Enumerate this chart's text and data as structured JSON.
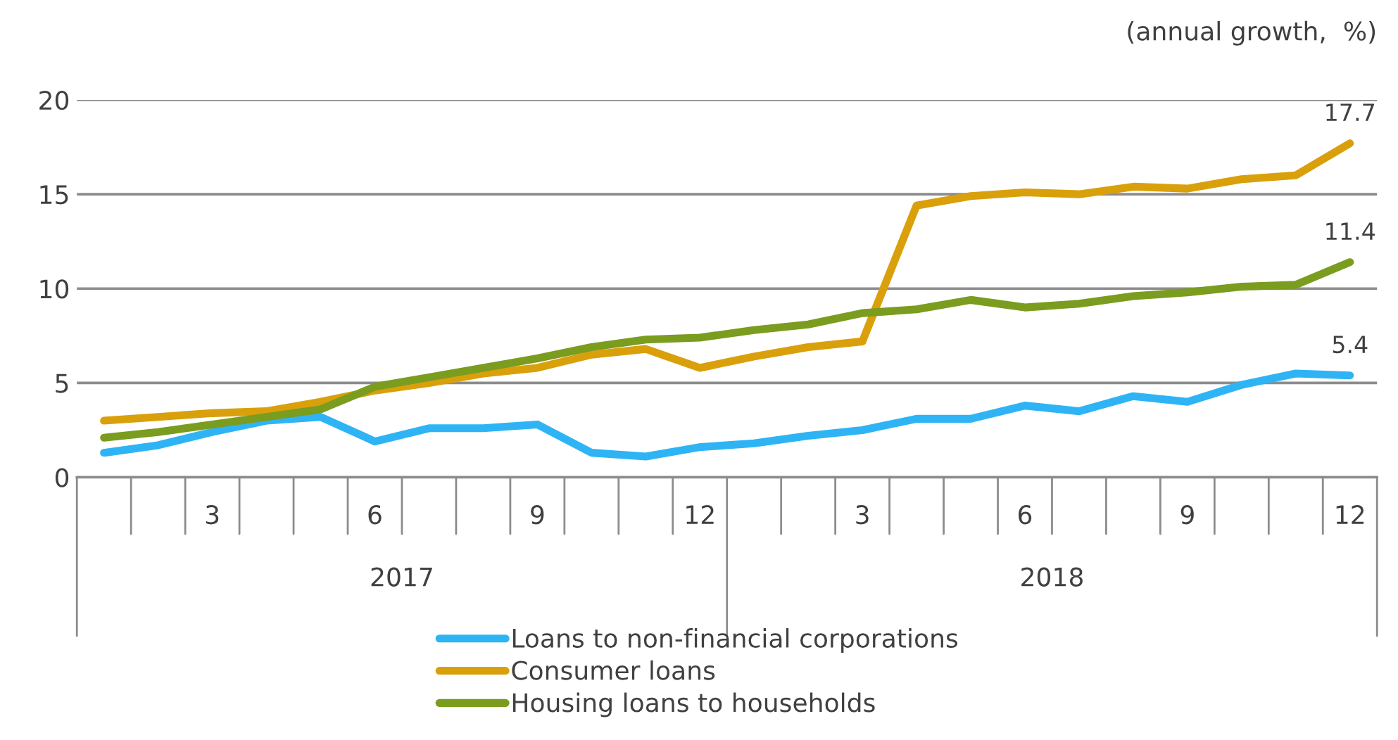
{
  "chart_data": {
    "type": "line",
    "ylabel": "(annual growth,  %)",
    "categories": [
      null,
      null,
      "3",
      null,
      null,
      "6",
      null,
      null,
      "9",
      null,
      null,
      "12",
      null,
      null,
      "3",
      null,
      null,
      "6",
      null,
      null,
      "9",
      null,
      null,
      "12"
    ],
    "annotations": [
      "2017",
      "2018"
    ],
    "series": [
      {
        "name": "Loans to non-financial corporations",
        "color": "#2eb4f5",
        "values": [
          1.3,
          1.7,
          2.4,
          3.0,
          3.2,
          1.9,
          2.6,
          2.6,
          2.8,
          1.3,
          1.1,
          1.6,
          1.8,
          2.2,
          2.5,
          3.1,
          3.1,
          3.8,
          3.5,
          4.3,
          4.0,
          4.9,
          5.5,
          5.4
        ],
        "value_labels": [
          null,
          null,
          null,
          null,
          null,
          null,
          null,
          null,
          null,
          null,
          null,
          null,
          null,
          null,
          null,
          null,
          null,
          null,
          null,
          null,
          null,
          null,
          null,
          "5.4"
        ]
      },
      {
        "name": "Consumer loans",
        "color": "#d9a00b",
        "values": [
          3.0,
          3.2,
          3.4,
          3.5,
          4.0,
          4.6,
          5.0,
          5.5,
          5.8,
          6.5,
          6.8,
          5.8,
          6.4,
          6.9,
          7.2,
          14.4,
          14.9,
          15.1,
          15.0,
          15.4,
          15.3,
          15.8,
          16.0,
          17.7
        ],
        "value_labels": [
          null,
          null,
          null,
          null,
          null,
          null,
          null,
          null,
          null,
          null,
          null,
          null,
          null,
          null,
          null,
          null,
          null,
          null,
          null,
          null,
          null,
          null,
          null,
          "17.7"
        ]
      },
      {
        "name": "Housing loans to households",
        "color": "#7a9c1f",
        "values": [
          2.1,
          2.4,
          2.8,
          3.2,
          3.6,
          4.8,
          5.3,
          5.8,
          6.3,
          6.9,
          7.3,
          7.4,
          7.8,
          8.1,
          8.7,
          8.9,
          9.4,
          9.0,
          9.2,
          9.6,
          9.8,
          10.1,
          10.2,
          11.4
        ],
        "value_labels": [
          null,
          null,
          null,
          null,
          null,
          null,
          null,
          null,
          null,
          null,
          null,
          null,
          null,
          null,
          null,
          null,
          null,
          null,
          null,
          null,
          null,
          null,
          null,
          "11.4"
        ]
      }
    ],
    "ylim": [
      0,
      20
    ],
    "yticks": [
      0,
      5,
      10,
      15,
      20
    ],
    "grid": "y",
    "legend": "bottom",
    "line_style": "solid",
    "marker": "none"
  }
}
